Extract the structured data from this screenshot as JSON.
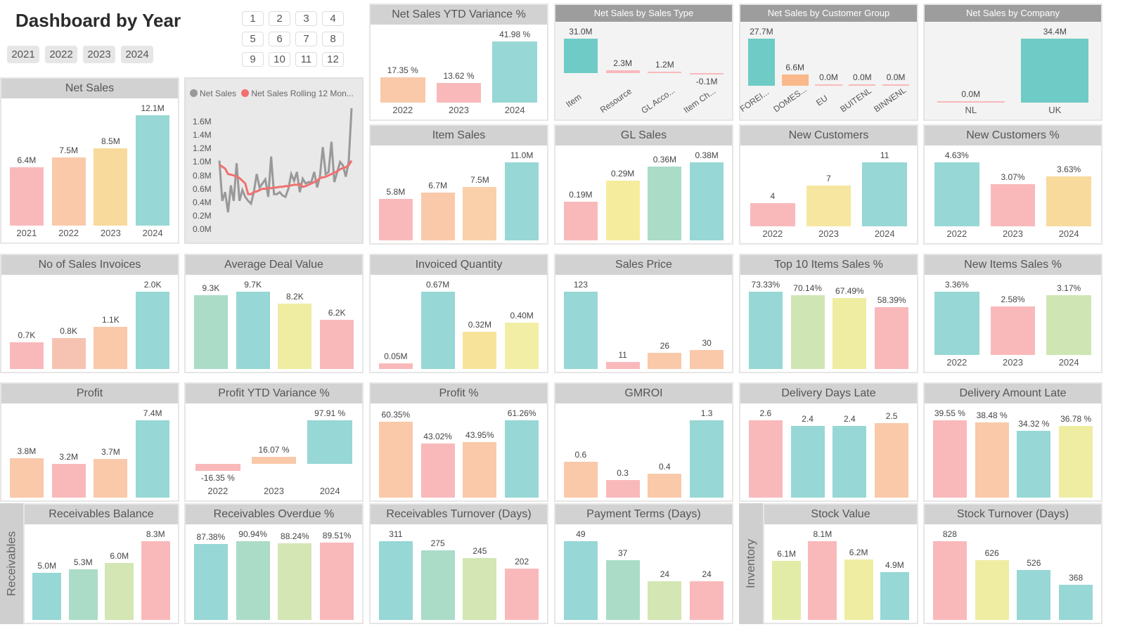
{
  "header": {
    "title": "Dashboard by Year"
  },
  "year_slicer": [
    "2021",
    "2022",
    "2023",
    "2024"
  ],
  "month_slicer": [
    "1",
    "2",
    "3",
    "4",
    "5",
    "6",
    "7",
    "8",
    "9",
    "10",
    "11",
    "12"
  ],
  "side_labels": {
    "receivables": "Receivables",
    "inventory": "Inventory"
  },
  "palette": {
    "pink": "#f9b9bb",
    "peach": "#f9c9aa",
    "yellow": "#f7da9c",
    "teal": "#97d7d5",
    "mint": "#aadcc8",
    "lemon": "#eeeda2",
    "green": "#cfe6b4"
  },
  "chart_data": [
    {
      "type": "bar",
      "title": "Net Sales",
      "categories": [
        "2021",
        "2022",
        "2023",
        "2024"
      ],
      "values": [
        6.4,
        7.5,
        8.5,
        12.1
      ],
      "labels": [
        "6.4M",
        "7.5M",
        "8.5M",
        "12.1M"
      ],
      "colors": [
        "#f9b9bb",
        "#f9c9aa",
        "#f7da9c",
        "#97d7d5"
      ]
    },
    {
      "type": "line",
      "legend": [
        "Net Sales",
        "Net Sales Rolling 12 Mon..."
      ],
      "series_colors": [
        "#999999",
        "#f07070"
      ],
      "yticks": [
        "1.6M",
        "1.4M",
        "1.2M",
        "1.0M",
        "0.8M",
        "0.6M",
        "0.4M",
        "0.2M",
        "0.0M"
      ],
      "ylim": [
        0,
        1.6
      ],
      "series": [
        {
          "name": "Net Sales",
          "values": [
            1.02,
            0.42,
            0.55,
            0.25,
            0.65,
            0.42,
            0.98,
            0.42,
            0.58,
            0.48,
            0.42,
            0.38,
            0.55,
            0.82,
            0.62,
            0.68,
            0.74,
            0.48,
            1.08,
            0.52,
            0.52,
            0.55,
            0.5,
            0.48,
            0.6,
            0.82,
            0.72,
            0.85,
            0.55,
            0.75,
            0.68,
            0.7,
            0.7,
            0.85,
            0.62,
            0.78,
            1.22,
            0.82,
            0.85,
            1.3,
            0.7,
            0.85,
            1.0,
            0.95,
            0.78,
            1.0,
            1.8
          ]
        },
        {
          "name": "Net Sales Rolling 12 Mon...",
          "values": [
            0.96,
            0.93,
            0.9,
            0.82,
            0.81,
            0.8,
            0.78,
            0.76,
            0.72,
            0.68,
            0.52,
            0.52,
            0.55,
            0.56,
            0.58,
            0.6,
            0.6,
            0.61,
            0.61,
            0.62,
            0.62,
            0.63,
            0.63,
            0.64,
            0.64,
            0.65,
            0.66,
            0.66,
            0.67,
            0.63,
            0.64,
            0.66,
            0.68,
            0.7,
            0.72,
            0.76,
            0.77,
            0.78,
            0.8,
            0.82,
            0.84,
            0.86,
            0.89,
            0.91,
            0.92,
            0.95,
            1.02
          ]
        }
      ]
    },
    {
      "type": "bar",
      "title": "Net Sales YTD Variance %",
      "categories": [
        "2022",
        "2023",
        "2024"
      ],
      "values": [
        17.35,
        13.62,
        41.98
      ],
      "labels": [
        "17.35 %",
        "13.62 %",
        "41.98 %"
      ],
      "colors": [
        "#f9c9aa",
        "#f9b9bb",
        "#97d7d5"
      ]
    },
    {
      "type": "bar",
      "title": "Net Sales by Sales Type",
      "rotate": true,
      "categories": [
        "Item",
        "Resource",
        "GL Acco...",
        "Item Ch..."
      ],
      "values": [
        31.0,
        2.3,
        1.2,
        -0.1
      ],
      "labels": [
        "31.0M",
        "2.3M",
        "1.2M",
        "-0.1M"
      ],
      "colors": [
        "#6fcbc5",
        "#f9b9bb",
        "#f9b9bb",
        "#f9b9bb"
      ]
    },
    {
      "type": "bar",
      "title": "Net Sales by Customer Group",
      "rotate": true,
      "categories": [
        "FOREI...",
        "DOMES...",
        "EU",
        "BUITENL",
        "BINNENL"
      ],
      "values": [
        27.7,
        6.6,
        0,
        0,
        0
      ],
      "labels": [
        "27.7M",
        "6.6M",
        "0.0M",
        "0.0M",
        "0.0M"
      ],
      "colors": [
        "#6fcbc5",
        "#f9b98a",
        "#f9b9bb",
        "#f9b9bb",
        "#f9b9bb"
      ]
    },
    {
      "type": "bar",
      "title": "Net Sales by Company",
      "categories": [
        "NL",
        "UK"
      ],
      "values": [
        0,
        34.4
      ],
      "labels": [
        "0.0M",
        "34.4M"
      ],
      "colors": [
        "#f9b9bb",
        "#6fcbc5"
      ]
    },
    {
      "type": "bar",
      "title": "Item Sales",
      "values": [
        5.8,
        6.7,
        7.5,
        11.0
      ],
      "labels": [
        "5.8M",
        "6.7M",
        "7.5M",
        "11.0M"
      ],
      "colors": [
        "#f9b9bb",
        "#f9c9aa",
        "#f9d0aa",
        "#97d7d5"
      ]
    },
    {
      "type": "bar",
      "title": "GL Sales",
      "values": [
        0.19,
        0.29,
        0.36,
        0.38
      ],
      "labels": [
        "0.19M",
        "0.29M",
        "0.36M",
        "0.38M"
      ],
      "colors": [
        "#f9b9bb",
        "#f6ec9e",
        "#aadcc8",
        "#97d7d5"
      ]
    },
    {
      "type": "bar",
      "title": "New Customers",
      "categories": [
        "2022",
        "2023",
        "2024"
      ],
      "values": [
        4,
        7,
        11
      ],
      "labels": [
        "4",
        "7",
        "11"
      ],
      "colors": [
        "#f9b9bb",
        "#f6e6a0",
        "#97d7d5"
      ]
    },
    {
      "type": "bar",
      "title": "New Customers %",
      "categories": [
        "2022",
        "2023",
        "2024"
      ],
      "values": [
        4.63,
        3.07,
        3.63
      ],
      "labels": [
        "4.63%",
        "3.07%",
        "3.63%"
      ],
      "colors": [
        "#97d7d5",
        "#f9b9bb",
        "#f7da9c"
      ]
    },
    {
      "type": "bar",
      "title": "No of Sales Invoices",
      "values": [
        0.7,
        0.8,
        1.1,
        2.0
      ],
      "labels": [
        "0.7K",
        "0.8K",
        "1.1K",
        "2.0K"
      ],
      "colors": [
        "#f9b9bb",
        "#f6c3b3",
        "#f9c9aa",
        "#97d7d5"
      ]
    },
    {
      "type": "bar",
      "title": "Average Deal Value",
      "values": [
        9.3,
        9.7,
        8.2,
        6.2
      ],
      "labels": [
        "9.3K",
        "9.7K",
        "8.2K",
        "6.2K"
      ],
      "colors": [
        "#aadcc8",
        "#97d7d5",
        "#eeeda2",
        "#f9b9bb"
      ]
    },
    {
      "type": "bar",
      "title": "Invoiced Quantity",
      "values": [
        0.05,
        0.67,
        0.32,
        0.4
      ],
      "labels": [
        "0.05M",
        "0.67M",
        "0.32M",
        "0.40M"
      ],
      "colors": [
        "#f9b9bb",
        "#97d7d5",
        "#f7e49a",
        "#f2eea5"
      ]
    },
    {
      "type": "bar",
      "title": "Sales Price",
      "values": [
        123,
        11,
        26,
        30
      ],
      "labels": [
        "123",
        "11",
        "26",
        "30"
      ],
      "colors": [
        "#97d7d5",
        "#f9b9bb",
        "#f9c9aa",
        "#f9c9aa"
      ]
    },
    {
      "type": "bar",
      "title": "Top 10 Items Sales %",
      "values": [
        73.33,
        70.14,
        67.49,
        58.39
      ],
      "labels": [
        "73.33%",
        "70.14%",
        "67.49%",
        "58.39%"
      ],
      "colors": [
        "#97d7d5",
        "#cfe6b4",
        "#eeeda2",
        "#f9b9bb"
      ]
    },
    {
      "type": "bar",
      "title": "New Items Sales %",
      "categories": [
        "2022",
        "2023",
        "2024"
      ],
      "values": [
        3.36,
        2.58,
        3.17
      ],
      "labels": [
        "3.36%",
        "2.58%",
        "3.17%"
      ],
      "colors": [
        "#97d7d5",
        "#f9b9bb",
        "#cfe6b4"
      ]
    },
    {
      "type": "bar",
      "title": "Profit",
      "values": [
        3.8,
        3.2,
        3.7,
        7.4
      ],
      "labels": [
        "3.8M",
        "3.2M",
        "3.7M",
        "7.4M"
      ],
      "colors": [
        "#f9c9aa",
        "#f9b9bb",
        "#f9c9aa",
        "#97d7d5"
      ]
    },
    {
      "type": "bar",
      "title": "Profit YTD Variance %",
      "categories": [
        "2022",
        "2023",
        "2024"
      ],
      "values": [
        -16.35,
        16.07,
        97.91
      ],
      "labels": [
        "-16.35 %",
        "16.07 %",
        "97.91 %"
      ],
      "colors": [
        "#f9b9bb",
        "#f9c9aa",
        "#97d7d5"
      ]
    },
    {
      "type": "bar",
      "title": "Profit %",
      "values": [
        60.35,
        43.02,
        43.95,
        61.26
      ],
      "labels": [
        "60.35%",
        "43.02%",
        "43.95%",
        "61.26%"
      ],
      "colors": [
        "#f9c9aa",
        "#f9b9bb",
        "#f9c9aa",
        "#97d7d5"
      ]
    },
    {
      "type": "bar",
      "title": "GMROI",
      "values": [
        0.6,
        0.3,
        0.4,
        1.3
      ],
      "labels": [
        "0.6",
        "0.3",
        "0.4",
        "1.3"
      ],
      "colors": [
        "#f9c9aa",
        "#f9b9bb",
        "#f9c9aa",
        "#97d7d5"
      ]
    },
    {
      "type": "bar",
      "title": "Delivery Days Late",
      "values": [
        2.6,
        2.4,
        2.4,
        2.5
      ],
      "labels": [
        "2.6",
        "2.4",
        "2.4",
        "2.5"
      ],
      "colors": [
        "#f9b9bb",
        "#97d7d5",
        "#97d7d5",
        "#f9c9aa"
      ]
    },
    {
      "type": "bar",
      "title": "Delivery Amount Late",
      "values": [
        39.55,
        38.48,
        34.32,
        36.78
      ],
      "labels": [
        "39.55 %",
        "38.48 %",
        "34.32 %",
        "36.78 %"
      ],
      "colors": [
        "#f9b9bb",
        "#f9c9aa",
        "#97d7d5",
        "#eeeda2"
      ]
    },
    {
      "type": "bar",
      "title": "Receivables Balance",
      "values": [
        5.0,
        5.3,
        6.0,
        8.3
      ],
      "labels": [
        "5.0M",
        "5.3M",
        "6.0M",
        "8.3M"
      ],
      "colors": [
        "#97d7d5",
        "#aadcc8",
        "#d3e6b4",
        "#f9b9bb"
      ]
    },
    {
      "type": "bar",
      "title": "Receivables Overdue %",
      "values": [
        87.38,
        90.94,
        88.24,
        89.51
      ],
      "labels": [
        "87.38%",
        "90.94%",
        "88.24%",
        "89.51%"
      ],
      "colors": [
        "#97d7d5",
        "#aadcc8",
        "#d3e6b4",
        "#f9b9bb"
      ]
    },
    {
      "type": "bar",
      "title": "Receivables Turnover (Days)",
      "values": [
        311,
        275,
        245,
        202
      ],
      "labels": [
        "311",
        "275",
        "245",
        "202"
      ],
      "colors": [
        "#97d7d5",
        "#aadcc8",
        "#d3e6b4",
        "#f9b9bb"
      ]
    },
    {
      "type": "bar",
      "title": "Payment Terms (Days)",
      "values": [
        49,
        37,
        24,
        24
      ],
      "labels": [
        "49",
        "37",
        "24",
        "24"
      ],
      "colors": [
        "#97d7d5",
        "#aadcc8",
        "#d3e6b4",
        "#f9b9bb"
      ]
    },
    {
      "type": "bar",
      "title": "Stock Value",
      "values": [
        6.1,
        8.1,
        6.2,
        4.9
      ],
      "labels": [
        "6.1M",
        "8.1M",
        "6.2M",
        "4.9M"
      ],
      "colors": [
        "#e2eca6",
        "#f9b9bb",
        "#eeeda2",
        "#97d7d5"
      ]
    },
    {
      "type": "bar",
      "title": "Stock Turnover (Days)",
      "values": [
        828,
        626,
        526,
        368
      ],
      "labels": [
        "828",
        "626",
        "526",
        "368"
      ],
      "colors": [
        "#f9b9bb",
        "#eeeda2",
        "#97d7d5",
        "#97d7d5"
      ]
    }
  ]
}
